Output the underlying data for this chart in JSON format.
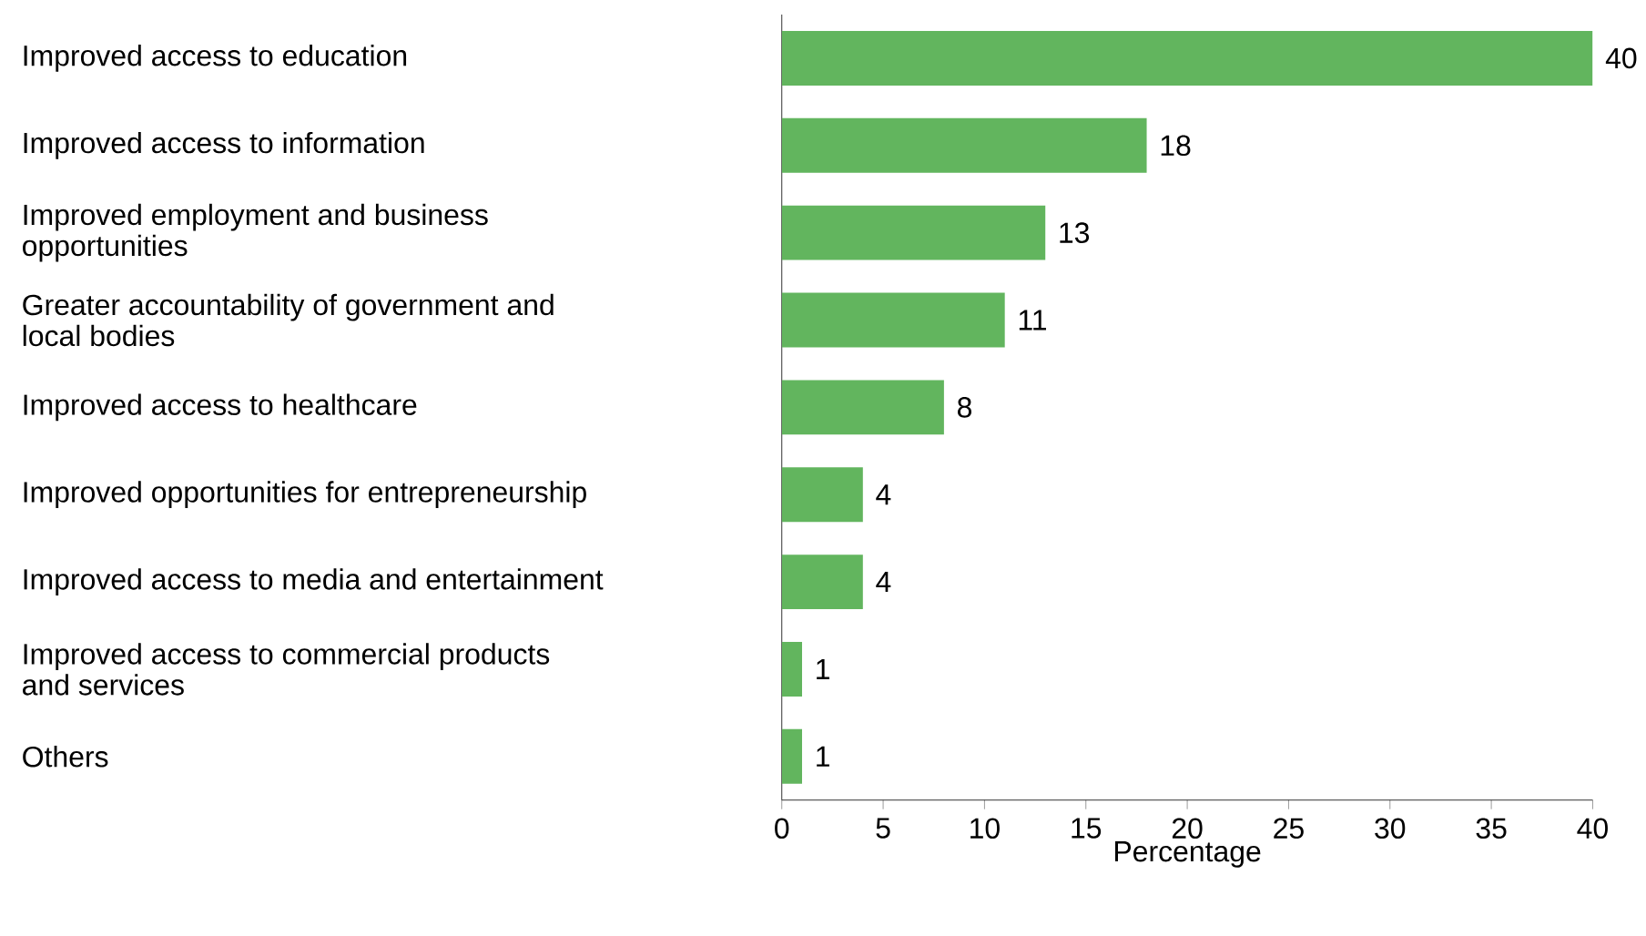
{
  "chart_data": {
    "type": "bar",
    "orientation": "horizontal",
    "xlabel": "Percentage",
    "categories": [
      "Improved access to education",
      "Improved access to information",
      "Improved employment and business opportunities",
      "Greater accountability of government and local bodies",
      "Improved access to healthcare",
      "Improved opportunities for entrepreneurship",
      "Improved access to media and entertainment",
      "Improved access to commercial products and services",
      "Others"
    ],
    "values": [
      40,
      18,
      13,
      11,
      8,
      4,
      4,
      1,
      1
    ],
    "color": "#62b55e",
    "xlim": [
      0,
      40
    ],
    "xticks": [
      0,
      5,
      10,
      15,
      20,
      25,
      30,
      35,
      40
    ],
    "data_labels": true,
    "grid": false
  }
}
